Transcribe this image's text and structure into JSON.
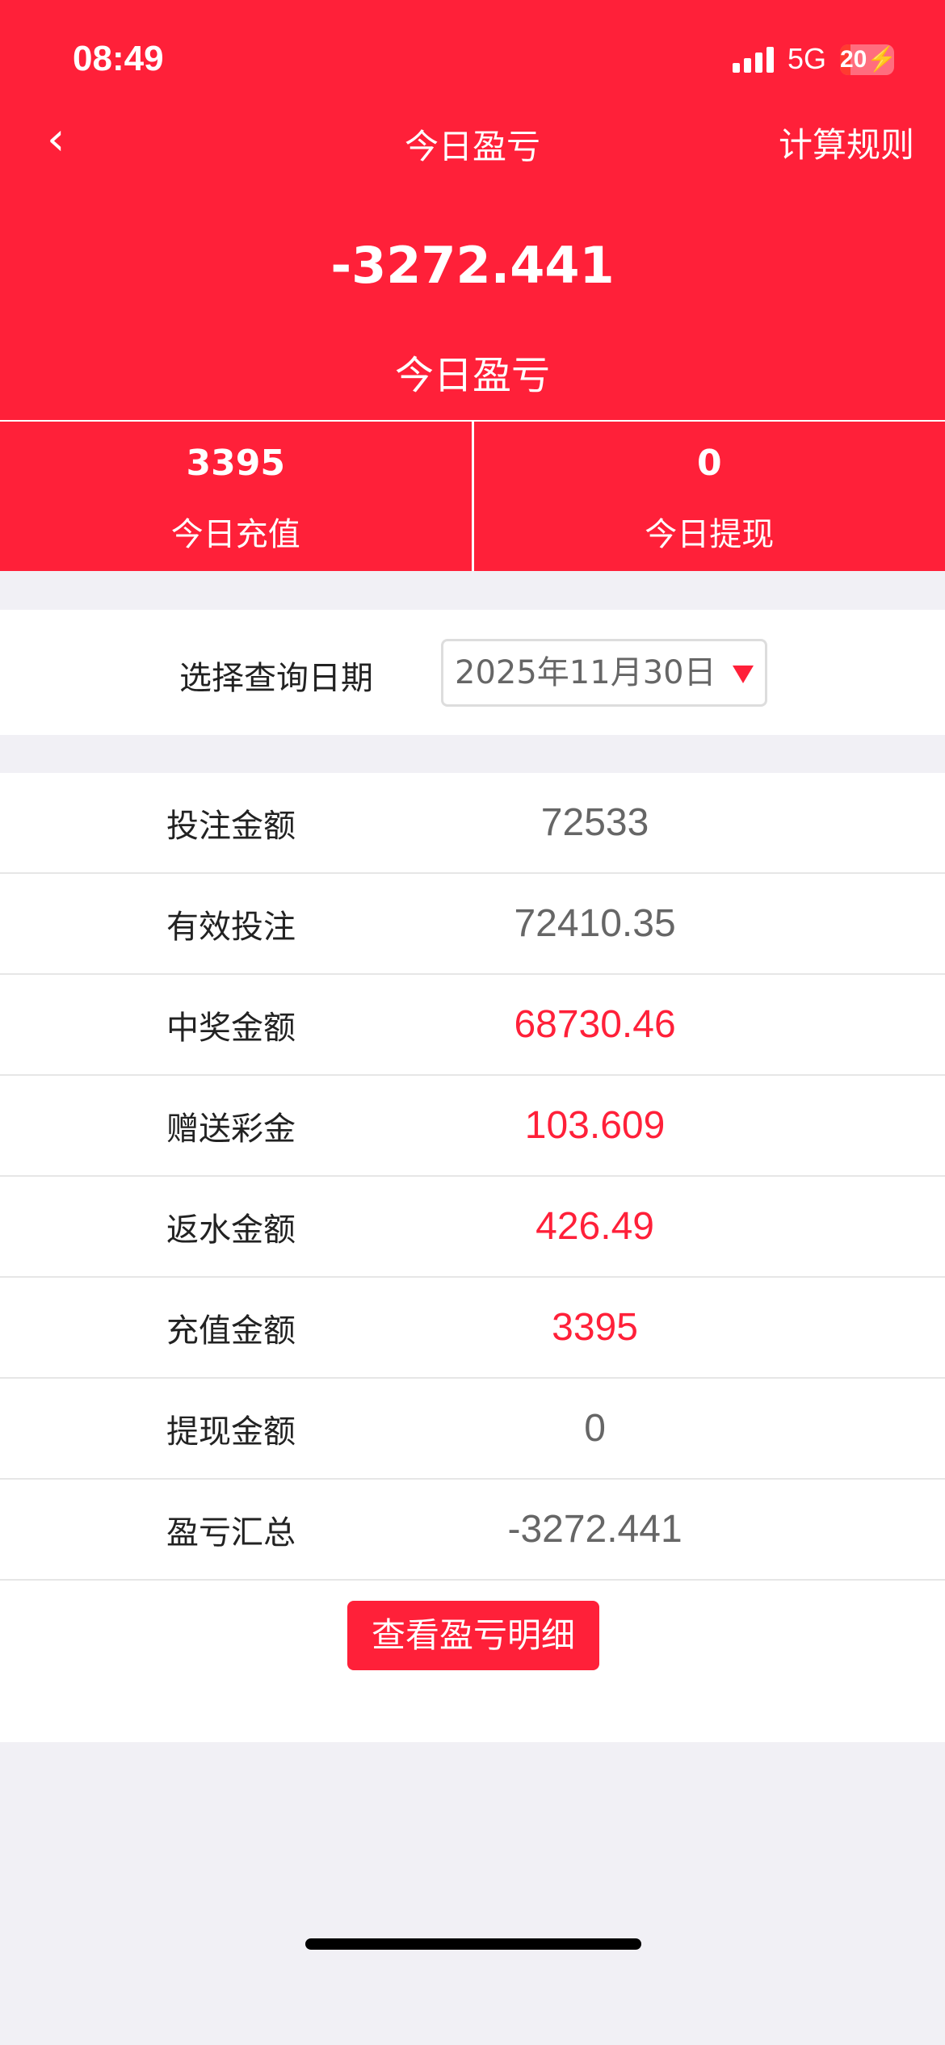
{
  "status_bar": {
    "time": "08:49",
    "network": "5G",
    "battery": "20",
    "battery_level": 20
  },
  "header": {
    "back_icon": "chevron-left",
    "title": "今日盈亏",
    "rules_link": "计算规则"
  },
  "summary": {
    "value": "-3272.441",
    "label": "今日盈亏"
  },
  "stats": [
    {
      "value": "3395",
      "label": "今日充值"
    },
    {
      "value": "0",
      "label": "今日提现"
    }
  ],
  "date_filter": {
    "label": "选择查询日期",
    "value": "2025年11月30日"
  },
  "rows": [
    {
      "label": "投注金额",
      "value": "72533",
      "highlight": false
    },
    {
      "label": "有效投注",
      "value": "72410.35",
      "highlight": false
    },
    {
      "label": "中奖金额",
      "value": "68730.46",
      "highlight": true
    },
    {
      "label": "赠送彩金",
      "value": "103.609",
      "highlight": true
    },
    {
      "label": "返水金额",
      "value": "426.49",
      "highlight": true
    },
    {
      "label": "充值金额",
      "value": "3395",
      "highlight": true
    },
    {
      "label": "提现金额",
      "value": "0",
      "highlight": false
    },
    {
      "label": "盈亏汇总",
      "value": "-3272.441",
      "highlight": false
    }
  ],
  "detail_button": "查看盈亏明细",
  "colors": {
    "accent": "#ff2039",
    "value_gray": "#666666"
  }
}
